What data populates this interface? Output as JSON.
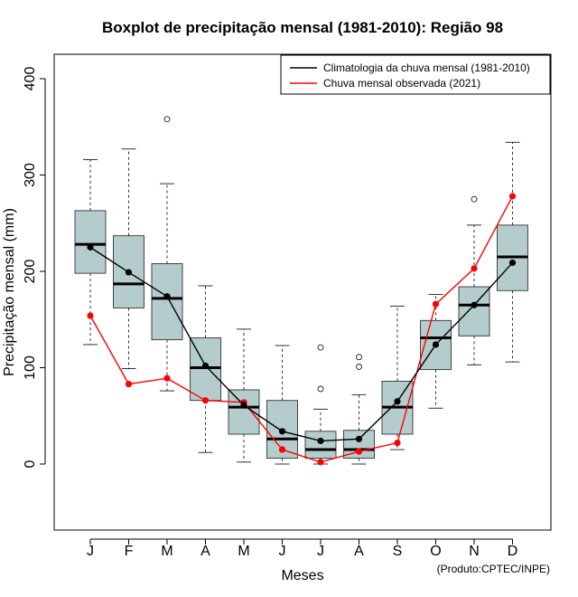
{
  "chart_data": {
    "type": "boxplot",
    "title": "Boxplot de precipitação mensal (1981-2010): Região 98",
    "xlabel": "Meses",
    "ylabel": "Precipitação mensal (mm)",
    "ylim": [
      -70,
      430
    ],
    "yticks": [
      0,
      100,
      200,
      300,
      400
    ],
    "categories": [
      "J",
      "F",
      "M",
      "A",
      "M",
      "J",
      "J",
      "A",
      "S",
      "O",
      "N",
      "D"
    ],
    "boxes": [
      {
        "whisker_low": 124,
        "q1": 198,
        "median": 228,
        "q3": 263,
        "whisker_high": 316,
        "outliers": []
      },
      {
        "whisker_low": 99,
        "q1": 162,
        "median": 187,
        "q3": 237,
        "whisker_high": 327,
        "outliers": []
      },
      {
        "whisker_low": 76,
        "q1": 129,
        "median": 172,
        "q3": 208,
        "whisker_high": 291,
        "outliers": [
          358
        ]
      },
      {
        "whisker_low": 12,
        "q1": 66,
        "median": 100,
        "q3": 131,
        "whisker_high": 185,
        "outliers": []
      },
      {
        "whisker_low": 2,
        "q1": 31,
        "median": 59,
        "q3": 77,
        "whisker_high": 140,
        "outliers": []
      },
      {
        "whisker_low": 0,
        "q1": 6,
        "median": 26,
        "q3": 66,
        "whisker_high": 123,
        "outliers": []
      },
      {
        "whisker_low": 0,
        "q1": 6,
        "median": 15,
        "q3": 34,
        "whisker_high": 57,
        "outliers": [
          78,
          121
        ]
      },
      {
        "whisker_low": 0,
        "q1": 6,
        "median": 15,
        "q3": 35,
        "whisker_high": 72,
        "outliers": [
          101,
          111
        ]
      },
      {
        "whisker_low": 15,
        "q1": 31,
        "median": 59,
        "q3": 86,
        "whisker_high": 164,
        "outliers": []
      },
      {
        "whisker_low": 58,
        "q1": 98,
        "median": 131,
        "q3": 149,
        "whisker_high": 176,
        "outliers": []
      },
      {
        "whisker_low": 103,
        "q1": 133,
        "median": 165,
        "q3": 184,
        "whisker_high": 248,
        "outliers": [
          275
        ]
      },
      {
        "whisker_low": 106,
        "q1": 180,
        "median": 215,
        "q3": 248,
        "whisker_high": 334,
        "outliers": []
      }
    ],
    "series": [
      {
        "name": "Climatologia da chuva mensal (1981-2010)",
        "color": "#000000",
        "values": [
          225,
          199,
          174,
          102,
          61,
          34,
          24,
          26,
          65,
          124,
          165,
          209
        ]
      },
      {
        "name": "Chuva mensal observada (2021)",
        "color": "#ff0000",
        "values": [
          154,
          83,
          89,
          66,
          64,
          15,
          2,
          13,
          22,
          166,
          203,
          278
        ]
      }
    ],
    "legend_position": "top-right",
    "box_fill": "#b4cccc",
    "source_note": "(Produto:CPTEC/INPE)"
  }
}
